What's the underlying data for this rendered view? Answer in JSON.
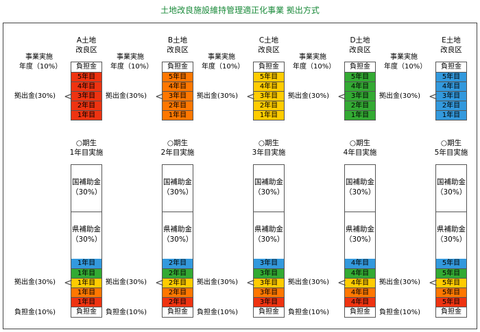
{
  "title": "土地改良施設維持管理適正化事業 拠出方式",
  "labels": {
    "project_year": "事業実施",
    "project_year2": "年度（10%）",
    "contribution": "拠出金(30%)",
    "burden_money": "負担金",
    "burden_pct": "負担金(10%)",
    "national": "国補助金",
    "prefectural": "県補助金",
    "pct30": "（30%）",
    "period": "○期生"
  },
  "years": [
    "5年目",
    "4年目",
    "3年目",
    "2年目",
    "1年目"
  ],
  "districts": [
    {
      "name": "A土地",
      "name2": "改良区",
      "color": "#ee3311",
      "impl": "1年目実施"
    },
    {
      "name": "B土地",
      "name2": "改良区",
      "color": "#ff7700",
      "impl": "2年目実施"
    },
    {
      "name": "C土地",
      "name2": "改良区",
      "color": "#ffcc00",
      "impl": "3年目実施"
    },
    {
      "name": "D土地",
      "name2": "改良区",
      "color": "#33aa33",
      "impl": "4年目実施"
    },
    {
      "name": "E土地",
      "name2": "改良区",
      "color": "#3399dd",
      "impl": "5年目実施"
    }
  ],
  "bottom_stacks": [
    [
      {
        "t": "1年目",
        "c": "#3399dd"
      },
      {
        "t": "1年目",
        "c": "#33aa33"
      },
      {
        "t": "1年目",
        "c": "#ffcc00"
      },
      {
        "t": "1年目",
        "c": "#ff7700"
      },
      {
        "t": "1年目",
        "c": "#ee3311"
      }
    ],
    [
      {
        "t": "2年目",
        "c": "#3399dd"
      },
      {
        "t": "2年目",
        "c": "#33aa33"
      },
      {
        "t": "2年目",
        "c": "#ffcc00"
      },
      {
        "t": "2年目",
        "c": "#ff7700"
      },
      {
        "t": "2年目",
        "c": "#ee3311"
      }
    ],
    [
      {
        "t": "3年目",
        "c": "#3399dd"
      },
      {
        "t": "3年目",
        "c": "#33aa33"
      },
      {
        "t": "3年目",
        "c": "#ffcc00"
      },
      {
        "t": "3年目",
        "c": "#ff7700"
      },
      {
        "t": "3年目",
        "c": "#ee3311"
      }
    ],
    [
      {
        "t": "4年目",
        "c": "#3399dd"
      },
      {
        "t": "4年目",
        "c": "#33aa33"
      },
      {
        "t": "4年目",
        "c": "#ffcc00"
      },
      {
        "t": "4年目",
        "c": "#ff7700"
      },
      {
        "t": "4年目",
        "c": "#ee3311"
      }
    ],
    [
      {
        "t": "5年目",
        "c": "#3399dd"
      },
      {
        "t": "5年目",
        "c": "#33aa33"
      },
      {
        "t": "5年目",
        "c": "#ffcc00"
      },
      {
        "t": "5年目",
        "c": "#ff7700"
      },
      {
        "t": "5年目",
        "c": "#ee3311"
      }
    ]
  ]
}
